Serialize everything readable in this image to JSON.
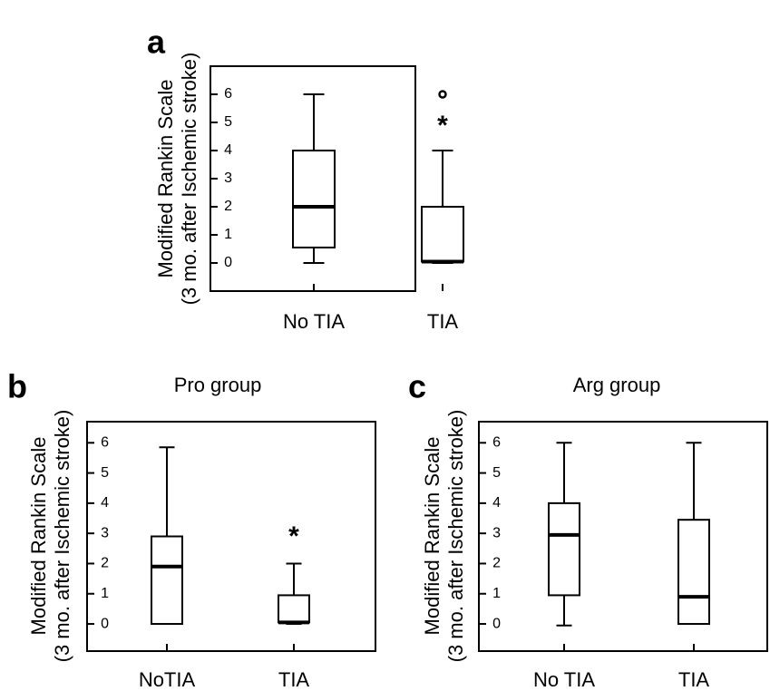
{
  "chart_data": [
    {
      "panel_label": "a",
      "type": "box",
      "title": "",
      "ylabel_lines": [
        "Modified Rankin Scale",
        "(3 mo. after Ischemic stroke)"
      ],
      "yticks": [
        "0",
        "1",
        "2",
        "3",
        "4",
        "5",
        "6"
      ],
      "ylim": [
        -1,
        7
      ],
      "categories": [
        "No TIA",
        "TIA"
      ],
      "boxes": [
        {
          "whisker_low": 0,
          "q1": 0.55,
          "median": 2.0,
          "q3": 4.0,
          "whisker_high": 6.0,
          "outliers": [],
          "extremes": []
        },
        {
          "whisker_low": 0,
          "q1": 0.05,
          "median": 0.05,
          "q3": 2.0,
          "whisker_high": 4.0,
          "outliers": [
            6
          ],
          "extremes": [
            5
          ]
        }
      ]
    },
    {
      "panel_label": "b",
      "type": "box",
      "title": "Pro  group",
      "ylabel_lines": [
        "Modified Rankin Scale",
        "(3 mo. after Ischemic stroke)"
      ],
      "yticks": [
        "0",
        "1",
        "2",
        "3",
        "4",
        "5",
        "6"
      ],
      "ylim": [
        -0.9,
        6.7
      ],
      "categories": [
        "NoTIA",
        "TIA"
      ],
      "boxes": [
        {
          "whisker_low": 0,
          "q1": 0,
          "median": 1.9,
          "q3": 2.9,
          "whisker_high": 5.85,
          "outliers": [],
          "extremes": []
        },
        {
          "whisker_low": 0,
          "q1": 0.05,
          "median": 0.05,
          "q3": 0.95,
          "whisker_high": 2.0,
          "outliers": [],
          "extremes": [
            3
          ]
        }
      ]
    },
    {
      "panel_label": "c",
      "type": "box",
      "title": "Arg  group",
      "ylabel_lines": [
        "Modified Rankin Scale",
        "(3 mo. after Ischemic stroke)"
      ],
      "yticks": [
        "0",
        "1",
        "2",
        "3",
        "4",
        "5",
        "6"
      ],
      "ylim": [
        -0.9,
        6.7
      ],
      "categories": [
        "No TIA",
        "TIA"
      ],
      "boxes": [
        {
          "whisker_low": -0.05,
          "q1": 0.95,
          "median": 2.95,
          "q3": 4.0,
          "whisker_high": 6.0,
          "outliers": [],
          "extremes": []
        },
        {
          "whisker_low": 0,
          "q1": 0,
          "median": 0.9,
          "q3": 3.45,
          "whisker_high": 6.0,
          "outliers": [],
          "extremes": []
        }
      ]
    }
  ]
}
